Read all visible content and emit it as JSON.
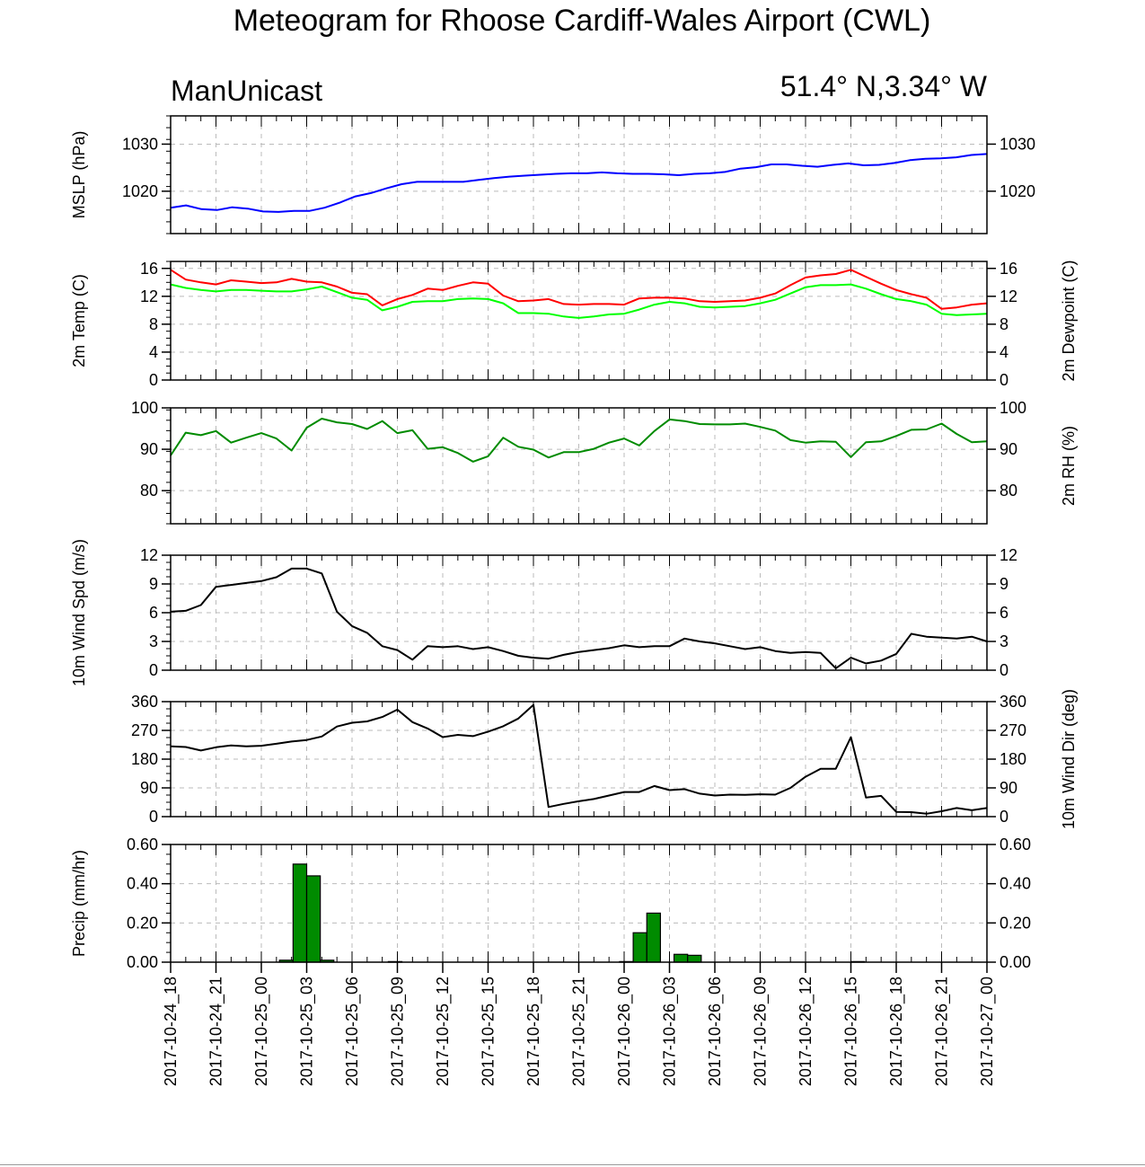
{
  "title": "Meteogram for Rhoose Cardiff-Wales Airport (CWL)",
  "model": "ManUnicast",
  "location": "51.4° N,3.34° W",
  "x_labels": [
    "2017-10-24_18",
    "2017-10-24_21",
    "2017-10-25_00",
    "2017-10-25_03",
    "2017-10-25_06",
    "2017-10-25_09",
    "2017-10-25_12",
    "2017-10-25_15",
    "2017-10-25_18",
    "2017-10-25_21",
    "2017-10-26_00",
    "2017-10-26_03",
    "2017-10-26_06",
    "2017-10-26_09",
    "2017-10-26_12",
    "2017-10-26_15",
    "2017-10-26_18",
    "2017-10-26_21",
    "2017-10-27_00"
  ],
  "chart_data": [
    {
      "type": "line",
      "ylabel_left": "MSLP (hPa)",
      "ylabel_right": "",
      "ylim": [
        1011,
        1036
      ],
      "yticks": [
        1020,
        1030
      ],
      "yticks_right": true,
      "series": [
        {
          "color": "#0000ff",
          "values": [
            1016.5,
            1017,
            1016.2,
            1016,
            1016.6,
            1016.3,
            1015.7,
            1015.6,
            1015.8,
            1015.8,
            1016.5,
            1017.6,
            1018.9,
            1019.6,
            1020.6,
            1021.5,
            1022,
            1022,
            1022,
            1022,
            1022.4,
            1022.8,
            1023.1,
            1023.3,
            1023.5,
            1023.7,
            1023.8,
            1023.8,
            1024,
            1023.8,
            1023.7,
            1023.7,
            1023.6,
            1023.4,
            1023.7,
            1023.8,
            1024.1,
            1024.8,
            1025.1,
            1025.7,
            1025.7,
            1025.4,
            1025.2,
            1025.6,
            1025.9,
            1025.5,
            1025.6,
            1026,
            1026.6,
            1026.9,
            1027,
            1027.2,
            1027.7,
            1027.9
          ]
        }
      ]
    },
    {
      "type": "line",
      "ylabel_left": "2m Temp (C)",
      "ylabel_right": "2m Dewpoint (C)",
      "ylim": [
        0,
        17
      ],
      "yticks": [
        0,
        4,
        8,
        12,
        16
      ],
      "yticks_right": true,
      "series": [
        {
          "color": "#ff0000",
          "values": [
            15.8,
            14.4,
            14,
            13.7,
            14.3,
            14.1,
            13.9,
            14,
            14.5,
            14.1,
            14,
            13.4,
            12.5,
            12.3,
            10.7,
            11.6,
            12.2,
            13.1,
            12.9,
            13.5,
            14,
            13.8,
            12.1,
            11.3,
            11.4,
            11.6,
            10.9,
            10.8,
            10.9,
            10.9,
            10.8,
            11.7,
            11.8,
            11.8,
            11.7,
            11.3,
            11.2,
            11.3,
            11.4,
            11.8,
            12.4,
            13.6,
            14.7,
            15,
            15.2,
            15.8,
            14.8,
            13.8,
            12.9,
            12.3,
            11.8,
            10.2,
            10.4,
            10.8,
            11
          ]
        },
        {
          "color": "#00ff00",
          "values": [
            13.7,
            13.2,
            12.9,
            12.7,
            12.9,
            12.9,
            12.8,
            12.7,
            12.7,
            13,
            13.4,
            12.6,
            11.8,
            11.5,
            10,
            10.5,
            11.2,
            11.3,
            11.3,
            11.6,
            11.7,
            11.6,
            11,
            9.6,
            9.6,
            9.5,
            9.1,
            8.9,
            9.1,
            9.4,
            9.5,
            10.1,
            10.8,
            11.2,
            11,
            10.5,
            10.4,
            10.5,
            10.6,
            11,
            11.5,
            12.4,
            13.3,
            13.6,
            13.6,
            13.7,
            13.1,
            12.3,
            11.6,
            11.3,
            10.8,
            9.5,
            9.3,
            9.4,
            9.5
          ]
        }
      ]
    },
    {
      "type": "line",
      "ylabel_left": "",
      "ylabel_right": "2m RH (%)",
      "ylim": [
        72,
        100
      ],
      "yticks": [
        80,
        90,
        100
      ],
      "yticks_right": true,
      "series": [
        {
          "color": "#008b00",
          "values": [
            88.5,
            94,
            93.4,
            94.4,
            91.6,
            92.8,
            93.9,
            92.6,
            89.7,
            95.2,
            97.4,
            96.5,
            96.1,
            94.9,
            96.8,
            93.9,
            94.6,
            90.1,
            90.5,
            89.1,
            87,
            88.3,
            92.8,
            90.6,
            89.9,
            88,
            89.3,
            89.3,
            90.1,
            91.6,
            92.6,
            90.9,
            94.4,
            97.2,
            96.8,
            96.1,
            96,
            96,
            96.2,
            95.4,
            94.5,
            92.2,
            91.6,
            91.9,
            91.8,
            88.1,
            91.7,
            91.9,
            93.2,
            94.7,
            94.8,
            96.2,
            93.7,
            91.7,
            91.9
          ]
        }
      ]
    },
    {
      "type": "line",
      "ylabel_left": "10m Wind Spd (m/s)",
      "ylabel_right": "",
      "ylim": [
        0,
        12
      ],
      "yticks": [
        0,
        3,
        6,
        9,
        12
      ],
      "yticks_right": true,
      "series": [
        {
          "color": "#000000",
          "values": [
            6.1,
            6.2,
            6.8,
            8.7,
            8.9,
            9.1,
            9.3,
            9.7,
            10.6,
            10.6,
            10.1,
            6.1,
            4.6,
            3.9,
            2.5,
            2.1,
            1.1,
            2.5,
            2.4,
            2.5,
            2.2,
            2.4,
            2,
            1.5,
            1.3,
            1.2,
            1.6,
            1.9,
            2.1,
            2.3,
            2.6,
            2.4,
            2.5,
            2.5,
            3.3,
            3,
            2.8,
            2.5,
            2.2,
            2.4,
            2,
            1.8,
            1.9,
            1.8,
            0.2,
            1.3,
            0.7,
            1,
            1.7,
            3.8,
            3.5,
            3.4,
            3.3,
            3.5,
            3
          ]
        }
      ]
    },
    {
      "type": "line",
      "ylabel_left": "",
      "ylabel_right": "10m Wind Dir (deg)",
      "ylim": [
        0,
        360
      ],
      "yticks": [
        0,
        90,
        180,
        270,
        360
      ],
      "yticks_right": true,
      "series": [
        {
          "color": "#000000",
          "values": [
            220,
            218,
            207,
            217,
            223,
            220,
            222,
            228,
            235,
            240,
            251,
            282,
            294,
            298,
            312,
            335,
            296,
            276,
            249,
            256,
            252,
            266,
            283,
            307,
            350,
            30,
            40,
            48,
            55,
            66,
            77,
            77,
            96,
            83,
            86,
            72,
            66,
            69,
            68,
            70,
            69,
            90,
            125,
            150,
            150,
            249,
            60,
            65,
            15,
            14,
            9,
            17,
            27,
            20,
            27
          ]
        }
      ]
    },
    {
      "type": "bar",
      "ylabel_left": "Precip (mm/hr)",
      "ylabel_right": "",
      "ylim": [
        0,
        0.6
      ],
      "yticks": [
        0,
        0.2,
        0.4,
        0.6
      ],
      "ytick_labels": [
        "0.00",
        "0.20",
        "0.40",
        "0.60"
      ],
      "yticks_right": true,
      "bar_color": "#008b00",
      "values": [
        0,
        0,
        0,
        0,
        0,
        0,
        0,
        0,
        0.01,
        0.5,
        0.44,
        0.01,
        0,
        0,
        0,
        0,
        0.003,
        0,
        0,
        0,
        0,
        0,
        0,
        0,
        0,
        0,
        0,
        0,
        0,
        0,
        0,
        0,
        0,
        0.003,
        0.15,
        0.25,
        0,
        0.04,
        0.035,
        0,
        0,
        0,
        0,
        0,
        0,
        0,
        0,
        0,
        0,
        0,
        0.003,
        0,
        0,
        0,
        0,
        0,
        0,
        0,
        0,
        0
      ]
    }
  ]
}
